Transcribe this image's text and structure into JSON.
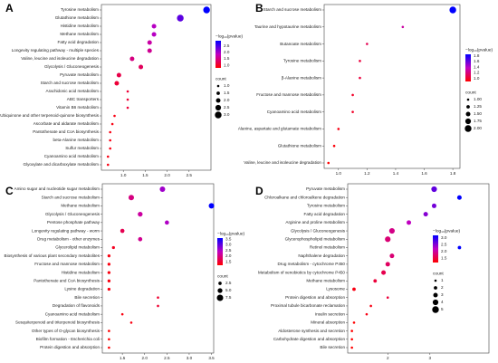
{
  "chart_data": [
    {
      "type": "scatter",
      "panel": "A",
      "categories": [
        "Tyrosine metabolism",
        "Glutathione metabolism",
        "Histidine metabolism",
        "Methane metabolism",
        "Fatty acid degradation",
        "Longevity regulating pathway - multiple species",
        "Valine, leucine and isoleucine degradation",
        "Glycolysis / Gluconeogenesis",
        "Pyruvate metabolism",
        "Starch and sucrose metabolism",
        "Arachidonic acid metabolism",
        "ABC transporters",
        "Vitamin B6 metabolism",
        "Ubiquinone and other terpenoid-quinone biosynthesis",
        "Ascorbate and aldarate metabolism",
        "Pantothenate and CoA biosynthesis",
        "beta-Alanine metabolism",
        "Sulfur metabolism",
        "Cyanoamino acid metabolism",
        "Glyoxylate and dicarboxylate metabolism"
      ],
      "values": [
        2.9,
        2.3,
        1.7,
        1.7,
        1.6,
        1.6,
        1.2,
        1.4,
        0.9,
        0.85,
        1.1,
        1.1,
        1.1,
        0.8,
        0.75,
        0.7,
        0.7,
        0.7,
        0.65,
        0.65
      ],
      "color_values": [
        2.9,
        2.4,
        1.9,
        1.9,
        1.7,
        1.6,
        1.5,
        1.3,
        1.2,
        1.1,
        1.1,
        1.1,
        1.1,
        0.9,
        0.9,
        0.9,
        0.9,
        0.9,
        0.9,
        0.9
      ],
      "size_values": [
        3,
        3,
        2,
        2,
        2,
        2,
        2,
        2,
        2,
        2,
        1,
        1,
        1,
        1,
        1,
        1,
        1,
        1,
        1,
        1
      ],
      "xlim": [
        0.5,
        3.0
      ],
      "xticks": [
        {
          "value": 1.0,
          "label": "1.0"
        },
        1.5,
        {
          "value": 2.0,
          "label": "2.0"
        },
        2.5
      ],
      "color_title": "−log₁₀(pvalue)",
      "clim": [
        0.8,
        2.9
      ],
      "cticks": [
        {
          "value": 1.0,
          "label": "1.0"
        },
        1.5,
        {
          "value": 2.0,
          "label": "2.0"
        },
        2.5
      ],
      "size_title": "count",
      "slim": [
        1,
        3
      ],
      "sticks": [
        {
          "value": 1.0,
          "label": "1.0"
        },
        1.5,
        {
          "value": 2.0,
          "label": "2.0"
        },
        2.5,
        {
          "value": 3.0,
          "label": "3.0"
        }
      ]
    },
    {
      "type": "scatter",
      "panel": "B",
      "categories": [
        "Starch and sucrose metabolism",
        "Taurine and hypotaurine metabolism",
        "Butanoate metabolism",
        "Tyrosine metabolism",
        "β-Alanine metabolism",
        "Fructose and mannose metabolism",
        "Cyanoamino acid metabolism",
        "Alanine, aspartate and glutamate metabolism",
        "Glutathione metabolism",
        "Valine, leucine and isoleucine degradation"
      ],
      "values": [
        1.8,
        1.45,
        1.2,
        1.15,
        1.15,
        1.1,
        1.1,
        1.0,
        0.97,
        0.93
      ],
      "color_values": [
        1.85,
        1.3,
        1.1,
        1.05,
        1.05,
        1.0,
        1.0,
        0.95,
        0.92,
        0.9
      ],
      "size_values": [
        2,
        1,
        1,
        1,
        1,
        1,
        1,
        1,
        1,
        1
      ],
      "xlim": [
        0.9,
        1.85
      ],
      "xticks": [
        {
          "value": 1.0,
          "label": "1.0"
        },
        1.2,
        1.4,
        1.6,
        1.8
      ],
      "color_title": "−log₁₀(pvalue)",
      "clim": [
        0.9,
        1.85
      ],
      "cticks": [
        {
          "value": 1.0,
          "label": "1.0"
        },
        1.2,
        1.4,
        1.6,
        1.8
      ],
      "size_title": "count",
      "slim": [
        1,
        2
      ],
      "sticks": [
        {
          "value": 1.0,
          "label": "1.00"
        },
        1.25,
        {
          "value": 1.5,
          "label": "1.50"
        },
        1.75,
        {
          "value": 2.0,
          "label": "2.00"
        }
      ]
    },
    {
      "type": "scatter",
      "panel": "C",
      "categories": [
        "Amino sugar and nucleotide sugar metabolism",
        "Starch and sucrose metabolism",
        "Methane metabolism",
        "Glycolysis / Gluconeogenesis",
        "Pentose phosphate pathway",
        "Longevity regulating pathway - worm",
        "Drug metabolism - other enzymes",
        "Glycerolipid metabolism",
        "Biosynthesis of various plant secondary metabolites",
        "Fructose and mannose metabolism",
        "Histidine metabolism",
        "Pantothenate and CoA biosynthesis",
        "Lysine degradation",
        "Bile secretion",
        "Degradation of flavonoids",
        "Cyanoamino acid metabolism",
        "Sesquiterpenoid and triterpenoid biosynthesis",
        "Other types of O-glycan biosynthesis",
        "Biofilm formation - Escherichia coli",
        "Protein digestion and absorption"
      ],
      "values": [
        2.4,
        1.7,
        3.5,
        1.9,
        2.5,
        1.5,
        1.9,
        1.3,
        1.2,
        1.2,
        1.2,
        1.2,
        1.2,
        2.3,
        2.3,
        1.5,
        1.7,
        1.2,
        1.2,
        1.2
      ],
      "color_values": [
        2.6,
        2.0,
        3.6,
        2.2,
        2.5,
        1.7,
        2.1,
        1.4,
        1.3,
        1.3,
        1.3,
        1.3,
        1.3,
        1.5,
        1.5,
        1.3,
        1.3,
        1.2,
        1.2,
        1.2
      ],
      "size_values": [
        6,
        6,
        6,
        5,
        4,
        4,
        4,
        2,
        2,
        2,
        2,
        2,
        2,
        1,
        1,
        1,
        1,
        1,
        1,
        1
      ],
      "xlim": [
        1.05,
        3.55
      ],
      "xticks": [
        1.5,
        {
          "value": 2.0,
          "label": "2.0"
        },
        2.5,
        {
          "value": 3.0,
          "label": "3.0"
        },
        3.5
      ],
      "color_title": "−log₁₀(pvalue)",
      "clim": [
        1.2,
        3.6
      ],
      "cticks": [
        1.5,
        {
          "value": 2.0,
          "label": "2.0"
        },
        2.5,
        {
          "value": 3.0,
          "label": "3.0"
        },
        3.5
      ],
      "size_title": "count",
      "slim": [
        1,
        8
      ],
      "sticks": [
        2.5,
        {
          "value": 5.0,
          "label": "5.0"
        },
        7.5
      ]
    },
    {
      "type": "scatter",
      "panel": "D",
      "categories": [
        "Pyruvate metabolism",
        "Chloroalkane and chloroalkene degradation",
        "Tyrosine metabolism",
        "Fatty acid degradation",
        "Arginine and proline metabolism",
        "Glycolysis / Gluconeogenesis",
        "Glycerophospholipid metabolism",
        "Retinol metabolism",
        "Naphthalene degradation",
        "Drug metabolism - cytochrome P450",
        "Metabolism of xenobiotics by cytochrome P450",
        "Methane metabolism",
        "Lysosome",
        "Protein digestion and absorption",
        "Proximal tubule bicarbonate reclamation",
        "Insulin secretion",
        "Mineral absorption",
        "Aldosterone synthesis and secretion",
        "Carbohydrate digestion and absorption",
        "Bile secretion"
      ],
      "values": [
        3.1,
        3.7,
        3.1,
        2.9,
        2.5,
        2.1,
        2.0,
        3.7,
        2.1,
        2.0,
        1.9,
        1.7,
        1.2,
        2.0,
        1.6,
        1.5,
        1.2,
        1.15,
        1.15,
        1.15
      ],
      "color_values": [
        2.7,
        3.2,
        2.6,
        2.5,
        2.2,
        1.9,
        1.8,
        3.2,
        1.8,
        1.7,
        1.6,
        1.5,
        1.3,
        1.5,
        1.3,
        1.3,
        1.2,
        1.2,
        1.2,
        1.2
      ],
      "size_values": [
        4,
        3,
        3,
        3,
        3,
        4,
        4,
        2,
        3,
        3,
        3,
        2,
        2,
        1,
        1,
        1,
        1,
        1,
        1,
        1
      ],
      "xlim": [
        1.05,
        4.4
      ],
      "xticks": [
        2,
        3
      ],
      "color_title": "−log₁₀(pvalue)",
      "clim": [
        1.2,
        3.2
      ],
      "cticks": [
        1.5,
        {
          "value": 2.0,
          "label": "2.0"
        },
        2.5,
        {
          "value": 3.0,
          "label": "3.0"
        }
      ],
      "size_title": "count",
      "slim": [
        1,
        5
      ],
      "sticks": [
        1,
        2,
        3,
        4,
        5
      ]
    }
  ]
}
